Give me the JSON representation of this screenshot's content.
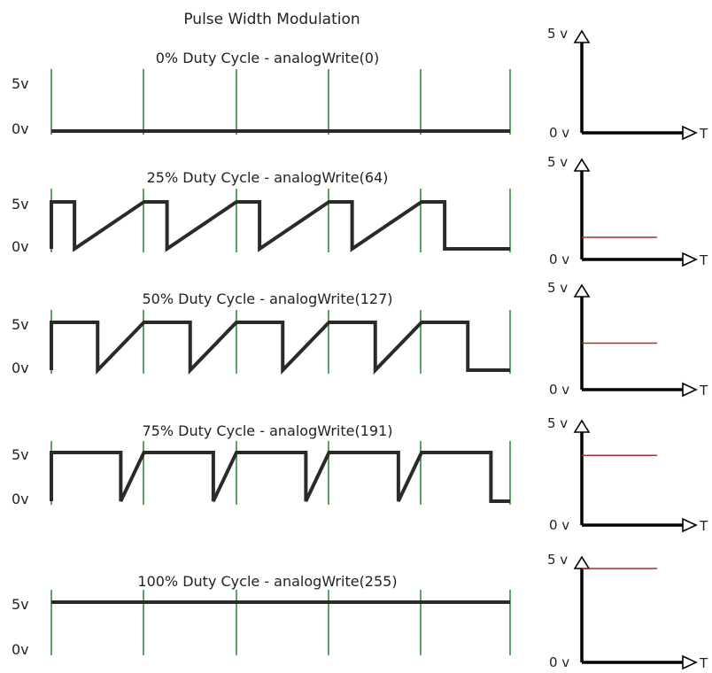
{
  "title": "Pulse Width Modulation",
  "high_label": "5v",
  "low_label": "0v",
  "right_axis": {
    "y_top_label": "5 v",
    "y_zero_label": "0 v",
    "x_label": "T"
  },
  "colors": {
    "waveform": "#2a2a2a",
    "period_marker": "#2f8f3a",
    "average_line": "#b02a2a",
    "axis": "#000000",
    "text": "#222222"
  },
  "panels": [
    {
      "label": "0% Duty Cycle - analogWrite(0)",
      "duty": 0.0
    },
    {
      "label": "25% Duty Cycle - analogWrite(64)",
      "duty": 0.25
    },
    {
      "label": "50% Duty Cycle - analogWrite(127)",
      "duty": 0.5
    },
    {
      "label": "75% Duty Cycle - analogWrite(191)",
      "duty": 0.75
    },
    {
      "label": "100% Duty Cycle - analogWrite(255)",
      "duty": 1.0
    }
  ]
}
